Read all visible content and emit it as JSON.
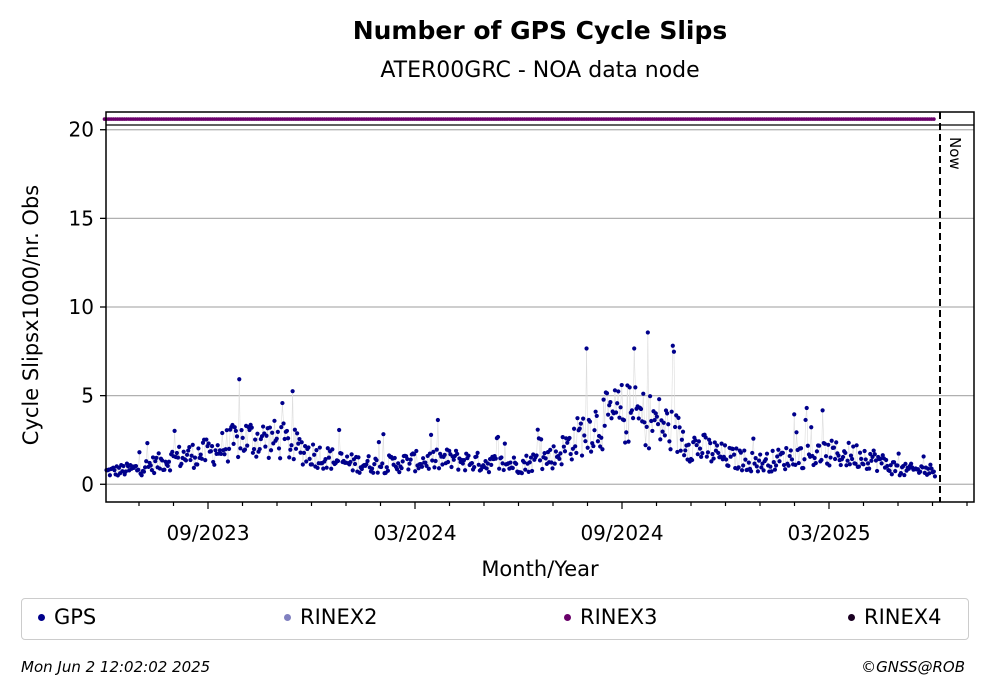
{
  "chart_data": {
    "type": "scatter",
    "title": "Number of GPS Cycle Slips",
    "subtitle": "ATER00GRC - NOA data node",
    "xlabel": "Month/Year",
    "ylabel": "Cycle Slipsx1000/nr. Obs",
    "x_tick_labels": [
      "09/2023",
      "03/2024",
      "09/2024",
      "03/2025"
    ],
    "y_tick_labels": [
      "0",
      "5",
      "10",
      "15",
      "20"
    ],
    "ylim": [
      -1,
      21
    ],
    "y_ticks": [
      0,
      5,
      10,
      15,
      20
    ],
    "grid": "horizontal",
    "now_label": "Now",
    "legend": {
      "placement": "bottom",
      "entries": [
        {
          "name": "GPS",
          "color": "#00008b"
        },
        {
          "name": "RINEX2",
          "color": "#8080c0"
        },
        {
          "name": "RINEX3",
          "color": "#6a006a"
        },
        {
          "name": "RINEX4",
          "color": "#1a0022"
        }
      ]
    },
    "series": [
      {
        "name": "GPS",
        "color": "#00008b",
        "description_range": "daily values 2023-06 to 2025-06",
        "monthly_mean": [
          {
            "x": "2023-06",
            "y": 0.7
          },
          {
            "x": "2023-07",
            "y": 0.9
          },
          {
            "x": "2023-08",
            "y": 1.5
          },
          {
            "x": "2023-09",
            "y": 1.8
          },
          {
            "x": "2023-10",
            "y": 2.6
          },
          {
            "x": "2023-11",
            "y": 2.5
          },
          {
            "x": "2023-12",
            "y": 1.7
          },
          {
            "x": "2024-01",
            "y": 1.2
          },
          {
            "x": "2024-02",
            "y": 1.1
          },
          {
            "x": "2024-03",
            "y": 1.3
          },
          {
            "x": "2024-04",
            "y": 1.4
          },
          {
            "x": "2024-05",
            "y": 1.2
          },
          {
            "x": "2024-06",
            "y": 1.1
          },
          {
            "x": "2024-07",
            "y": 1.6
          },
          {
            "x": "2024-08",
            "y": 3.2
          },
          {
            "x": "2024-09",
            "y": 4.0
          },
          {
            "x": "2024-10",
            "y": 3.5
          },
          {
            "x": "2024-11",
            "y": 2.2
          },
          {
            "x": "2024-12",
            "y": 1.5
          },
          {
            "x": "2025-01",
            "y": 1.2
          },
          {
            "x": "2025-02",
            "y": 1.6
          },
          {
            "x": "2025-03",
            "y": 1.7
          },
          {
            "x": "2025-04",
            "y": 1.6
          },
          {
            "x": "2025-05",
            "y": 0.8
          }
        ]
      },
      {
        "name": "RINEX3",
        "color": "#6a006a",
        "constant_y": 20.6,
        "x_start": "2023-06",
        "x_end": "2025-06"
      }
    ]
  },
  "footer": {
    "timestamp": "Mon Jun  2 12:02:02 2025",
    "credit": "©GNSS@ROB"
  }
}
